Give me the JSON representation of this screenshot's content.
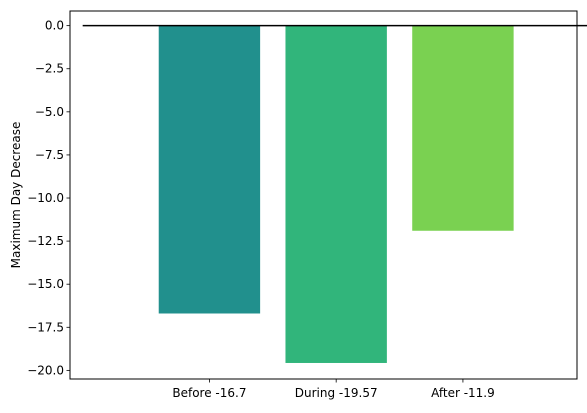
{
  "chart_data": {
    "type": "bar",
    "categories": [
      "Before -16.7",
      "During -19.57",
      "After -11.9"
    ],
    "values": [
      -16.7,
      -19.57,
      -11.9
    ],
    "colors": [
      "#21908d",
      "#31b57b",
      "#7ad151"
    ],
    "title": "",
    "xlabel": "",
    "ylabel": "Maximum Day Decrease",
    "ylim": [
      -20.5,
      0.85
    ],
    "yticks": [
      0.0,
      -2.5,
      -5.0,
      -7.5,
      -10.0,
      -12.5,
      -15.0,
      -17.5,
      -20.0
    ],
    "ytick_labels": [
      "0.0",
      "−2.5",
      "−5.0",
      "−7.5",
      "−10.0",
      "−12.5",
      "−15.0",
      "−17.5",
      "−20.0"
    ],
    "xlim": [
      -1.1,
      2.9
    ],
    "zero_line": {
      "value": 0,
      "color": "#000000"
    },
    "grid": false,
    "legend": "none"
  }
}
